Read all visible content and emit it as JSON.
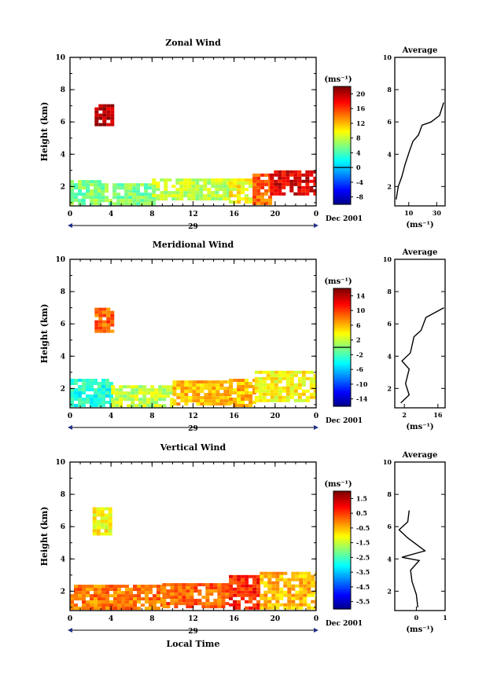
{
  "figure": {
    "xlabel": "Local Time",
    "date_label": "Dec 2001",
    "date_mark": "29",
    "colorbar_unit": "(ms⁻¹)",
    "avg_unit": "(ms⁻¹)",
    "avg_title": "Average"
  },
  "chart_data": [
    {
      "type": "heatmap",
      "title": "Zonal Wind",
      "ylabel": "Height (km)",
      "xlabel": "",
      "x_ticks": [
        "0",
        "4",
        "8",
        "12",
        "16",
        "20",
        "0"
      ],
      "xlim": [
        0,
        24
      ],
      "y_ticks": [
        "2",
        "4",
        "6",
        "8",
        "10"
      ],
      "ylim": [
        0.8,
        10
      ],
      "colorbar": {
        "ticks": [
          "20",
          "16",
          "12",
          "8",
          "4",
          "0",
          "-4",
          "-8"
        ],
        "range": [
          -10,
          22
        ],
        "zero_line": 0
      },
      "regions": [
        {
          "x": [
            2.4,
            4.2
          ],
          "y": [
            5.8,
            7.1
          ],
          "value": 20
        },
        {
          "x": [
            0.0,
            3.0
          ],
          "y": [
            1.0,
            2.4
          ],
          "value": 6
        },
        {
          "x": [
            3.0,
            8.0
          ],
          "y": [
            1.0,
            2.2
          ],
          "value": 6
        },
        {
          "x": [
            8.0,
            15.5
          ],
          "y": [
            1.2,
            2.5
          ],
          "value": 8
        },
        {
          "x": [
            15.5,
            17.8
          ],
          "y": [
            1.0,
            2.5
          ],
          "value": 10
        },
        {
          "x": [
            17.8,
            19.5
          ],
          "y": [
            1.0,
            2.8
          ],
          "value": 15
        },
        {
          "x": [
            19.5,
            24.0
          ],
          "y": [
            1.5,
            3.0
          ],
          "value": 19
        }
      ],
      "average": {
        "title": "Average",
        "xlabel": "(ms⁻¹)",
        "x_ticks": [
          "10",
          "30"
        ],
        "xlim": [
          0,
          36
        ],
        "y_ticks": [
          "2",
          "4",
          "6",
          "8",
          "10"
        ],
        "ylim": [
          0.8,
          10
        ],
        "profile": [
          [
            1.0,
            1.2
          ],
          [
            2.5,
            2.0
          ],
          [
            5.0,
            2.6
          ],
          [
            7.5,
            3.4
          ],
          [
            10.5,
            4.2
          ],
          [
            13.0,
            4.8
          ],
          [
            17.0,
            5.2
          ],
          [
            19.5,
            5.8
          ],
          [
            26.0,
            6.0
          ],
          [
            32.0,
            6.4
          ],
          [
            35.0,
            7.2
          ]
        ]
      }
    },
    {
      "type": "heatmap",
      "title": "Meridional Wind",
      "ylabel": "Height (km)",
      "xlabel": "",
      "x_ticks": [
        "0",
        "4",
        "8",
        "12",
        "16",
        "20",
        "0"
      ],
      "xlim": [
        0,
        24
      ],
      "y_ticks": [
        "2",
        "4",
        "6",
        "8",
        "10"
      ],
      "ylim": [
        0.8,
        10
      ],
      "colorbar": {
        "ticks": [
          "14",
          "10",
          "6",
          "2",
          "-2",
          "-6",
          "-10",
          "-14"
        ],
        "range": [
          -16,
          16
        ],
        "zero_line": 0
      },
      "regions": [
        {
          "x": [
            2.4,
            4.0
          ],
          "y": [
            5.6,
            7.0
          ],
          "value": 9
        },
        {
          "x": [
            0.0,
            4.0
          ],
          "y": [
            1.0,
            2.6
          ],
          "value": -3
        },
        {
          "x": [
            4.0,
            10.0
          ],
          "y": [
            1.0,
            2.2
          ],
          "value": 2
        },
        {
          "x": [
            10.0,
            15.5
          ],
          "y": [
            1.0,
            2.5
          ],
          "value": 6
        },
        {
          "x": [
            15.5,
            18.0
          ],
          "y": [
            1.0,
            2.6
          ],
          "value": 6
        },
        {
          "x": [
            18.0,
            24.0
          ],
          "y": [
            1.2,
            3.1
          ],
          "value": 4
        }
      ],
      "average": {
        "title": "Average",
        "xlabel": "(ms⁻¹)",
        "x_ticks": [
          "2",
          "16"
        ],
        "xlim": [
          -2,
          19
        ],
        "y_ticks": [
          "2",
          "4",
          "6",
          "8",
          "10"
        ],
        "ylim": [
          0.8,
          10
        ],
        "profile": [
          [
            0.5,
            1.1
          ],
          [
            4.0,
            1.6
          ],
          [
            2.5,
            2.3
          ],
          [
            4.0,
            3.2
          ],
          [
            1.0,
            3.7
          ],
          [
            4.5,
            4.2
          ],
          [
            6.0,
            5.2
          ],
          [
            9.0,
            5.6
          ],
          [
            11.0,
            6.4
          ],
          [
            18.5,
            7.0
          ]
        ]
      }
    },
    {
      "type": "heatmap",
      "title": "Vertical Wind",
      "ylabel": "Height (km)",
      "xlabel": "Local Time",
      "x_ticks": [
        "0",
        "4",
        "8",
        "12",
        "16",
        "20",
        "0"
      ],
      "xlim": [
        0,
        24
      ],
      "y_ticks": [
        "2",
        "4",
        "6",
        "8",
        "10"
      ],
      "ylim": [
        0.8,
        10
      ],
      "colorbar": {
        "ticks": [
          "1.5",
          "0.5",
          "-0.5",
          "-1.5",
          "-2.5",
          "-3.5",
          "-4.5",
          "-5.5"
        ],
        "range": [
          -6,
          2.2
        ],
        "zero_line": null
      },
      "regions": [
        {
          "x": [
            2.2,
            4.0
          ],
          "y": [
            5.5,
            7.2
          ],
          "value": -0.9
        },
        {
          "x": [
            0.0,
            9.0
          ],
          "y": [
            1.0,
            2.4
          ],
          "value": 0.2
        },
        {
          "x": [
            9.0,
            15.5
          ],
          "y": [
            1.0,
            2.5
          ],
          "value": 0.4
        },
        {
          "x": [
            15.5,
            18.5
          ],
          "y": [
            1.0,
            3.0
          ],
          "value": 0.9
        },
        {
          "x": [
            18.5,
            24.0
          ],
          "y": [
            1.0,
            3.2
          ],
          "value": -0.3
        }
      ],
      "average": {
        "title": "Average",
        "xlabel": "(ms⁻¹)",
        "x_ticks": [
          "0",
          "1"
        ],
        "xlim": [
          -0.75,
          1.0
        ],
        "y_ticks": [
          "2",
          "4",
          "6",
          "8",
          "10"
        ],
        "ylim": [
          0.8,
          10
        ],
        "profile": [
          [
            0.05,
            1.0
          ],
          [
            0.0,
            1.8
          ],
          [
            -0.15,
            2.6
          ],
          [
            -0.2,
            3.3
          ],
          [
            0.1,
            3.9
          ],
          [
            -0.5,
            4.1
          ],
          [
            0.3,
            4.5
          ],
          [
            -0.3,
            5.3
          ],
          [
            -0.6,
            5.8
          ],
          [
            -0.3,
            6.3
          ],
          [
            -0.25,
            7.0
          ]
        ]
      }
    }
  ]
}
